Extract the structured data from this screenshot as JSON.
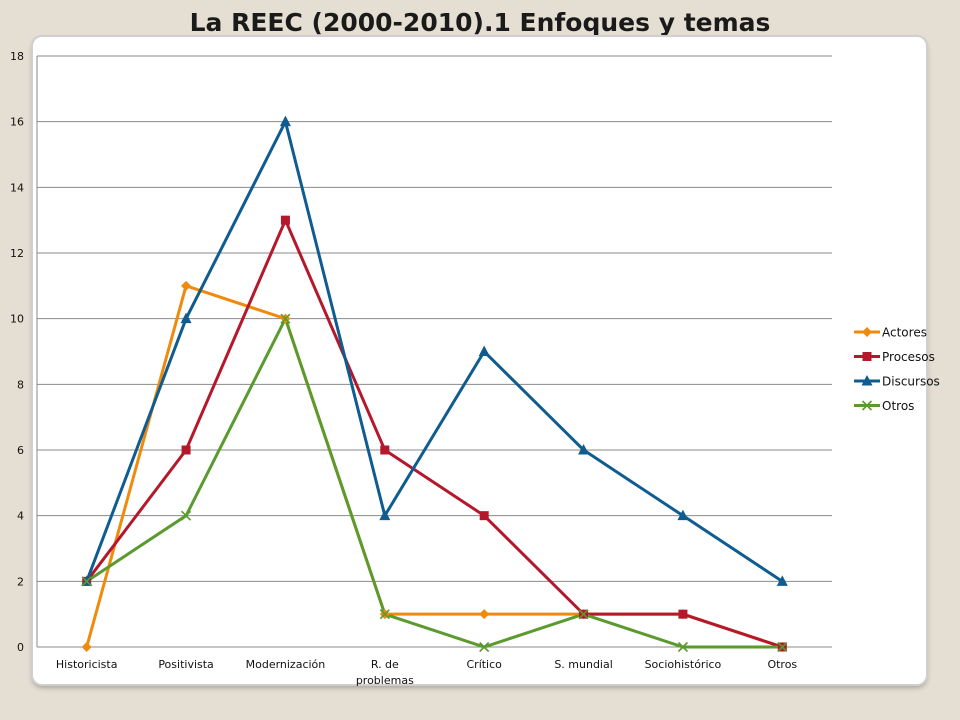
{
  "title": "La REEC (2000-2010).1 Enfoques y temas",
  "chart_data": {
    "type": "line",
    "title": "La REEC (2000-2010).1 Enfoques y temas",
    "xlabel": "",
    "ylabel": "",
    "ylim": [
      0,
      18
    ],
    "yticks": [
      0,
      2,
      4,
      6,
      8,
      10,
      12,
      14,
      16,
      18
    ],
    "grid": true,
    "legend_position": "right",
    "categories": [
      [
        "Historicista"
      ],
      [
        "Positivista"
      ],
      [
        "Modernización"
      ],
      [
        "R. de",
        "problemas"
      ],
      [
        "Crítico"
      ],
      [
        "S. mundial"
      ],
      [
        "Sociohistórico"
      ],
      [
        "Otros"
      ]
    ],
    "series": [
      {
        "name": "Actores",
        "color": "#f08a0c",
        "marker": "diamond",
        "values": [
          0,
          11,
          10,
          1,
          1,
          1,
          1,
          0
        ]
      },
      {
        "name": "Procesos",
        "color": "#b5172b",
        "marker": "square",
        "values": [
          2,
          6,
          13,
          6,
          4,
          1,
          1,
          0
        ]
      },
      {
        "name": "Discursos",
        "color": "#0f5c91",
        "marker": "triangle",
        "values": [
          2,
          10,
          16,
          4,
          9,
          6,
          4,
          2
        ]
      },
      {
        "name": "Otros",
        "color": "#5a9a2e",
        "marker": "x",
        "values": [
          2,
          4,
          10,
          1,
          0,
          1,
          0,
          0
        ]
      }
    ]
  }
}
